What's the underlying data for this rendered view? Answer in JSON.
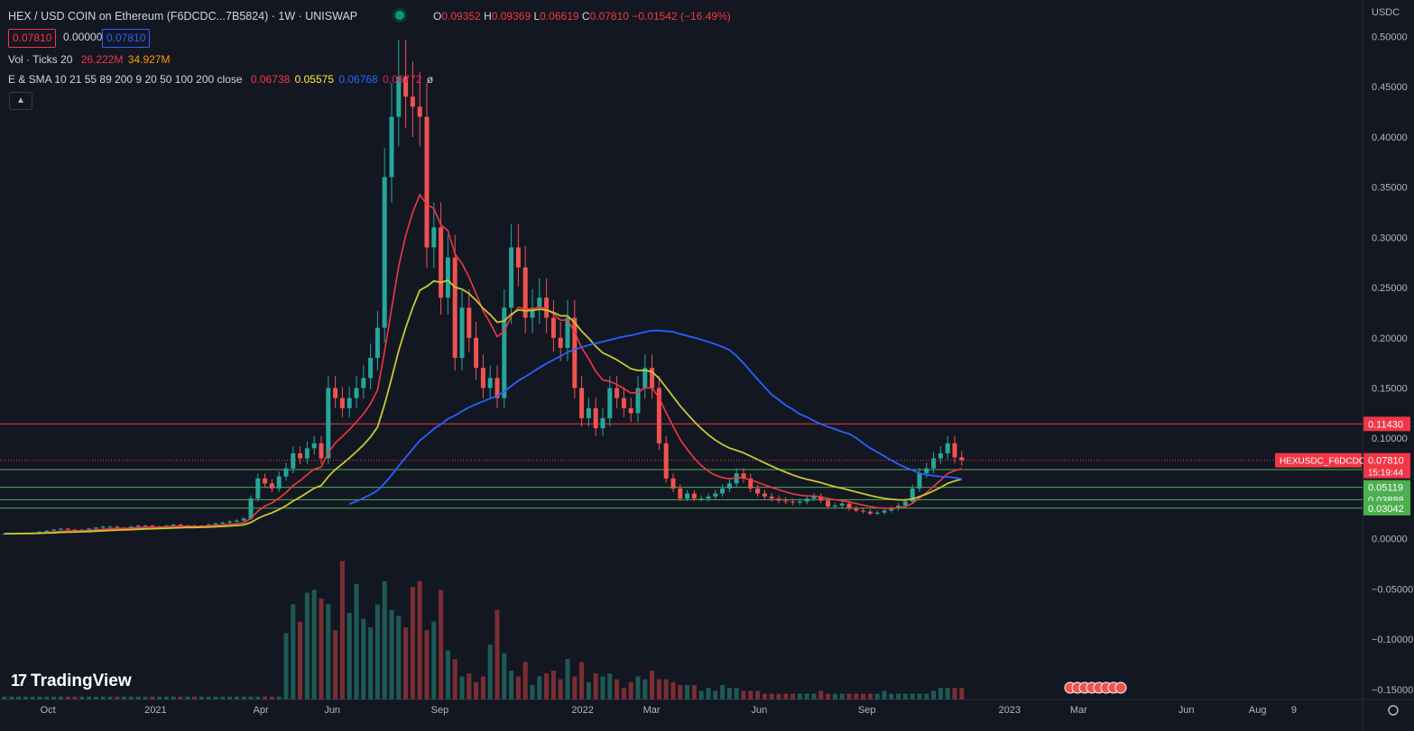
{
  "header": {
    "title": "HEX / USD COIN on Ethereum (F6DCDC...7B5824) · 1W · UNISWAP",
    "ohlc": [
      {
        "k": "O",
        "v": "0.09352"
      },
      {
        "k": "H",
        "v": "0.09369"
      },
      {
        "k": "L",
        "v": "0.06619"
      },
      {
        "k": "C",
        "v": "0.07810"
      }
    ],
    "change": "−0.01542 (−16.49%)",
    "bid": "0.07810",
    "spread": "0.00000",
    "ask": "0.07810"
  },
  "indicators": {
    "vol_label": "Vol · Ticks 20",
    "vol_v1": "26.222M",
    "vol_v2": "34.927M",
    "ma_label": "E & SMA 10 21 55 89 200 9 20 50 100 200 close",
    "ma_v1": "0.06738",
    "ma_v2": "0.05575",
    "ma_v3": "0.06768",
    "ma_v4": "0.06772",
    "ma_v5": "ø"
  },
  "collapse_icon": "chevron-up-icon",
  "branding": {
    "name": "TradingView",
    "logo_text": "17"
  },
  "currency": "USDC",
  "colors": {
    "up": "#26a69a",
    "down": "#ef5350",
    "ema10": "#f23645",
    "ema21": "#c8c832",
    "sma50": "#2962ff",
    "sma200": "#7b3a5a",
    "line_red": "#f23645",
    "line_green": "#4caf50"
  },
  "chart_data": {
    "type": "candlestick",
    "title": "HEX / USD COIN on Ethereum (F6DCDC...7B5824) · 1W · UNISWAP",
    "interval": "1W",
    "ylim": [
      -0.16,
      0.53
    ],
    "y_ticks": [
      0.5,
      0.45,
      0.4,
      0.35,
      0.3,
      0.25,
      0.2,
      0.15,
      0.1,
      0.05,
      0,
      -0.05,
      -0.1,
      -0.15
    ],
    "x_ticks": [
      {
        "label": "Oct",
        "date": "2020-10-01"
      },
      {
        "label": "2021",
        "date": "2021-01-01"
      },
      {
        "label": "Apr",
        "date": "2021-04-01"
      },
      {
        "label": "Jun",
        "date": "2021-06-01"
      },
      {
        "label": "Sep",
        "date": "2021-09-01"
      },
      {
        "label": "2022",
        "date": "2022-01-01"
      },
      {
        "label": "Mar",
        "date": "2022-03-01"
      },
      {
        "label": "Jun",
        "date": "2022-06-01"
      },
      {
        "label": "Sep",
        "date": "2022-09-01"
      },
      {
        "label": "2023",
        "date": "2023-01-01"
      },
      {
        "label": "Mar",
        "date": "2023-03-01"
      },
      {
        "label": "Jun",
        "date": "2023-06-01"
      },
      {
        "label": "Aug",
        "date": "2023-08-01"
      },
      {
        "label": "9",
        "date": "2023-09-01"
      }
    ],
    "close": [
      0.005,
      0.005,
      0.006,
      0.006,
      0.006,
      0.007,
      0.008,
      0.009,
      0.01,
      0.009,
      0.008,
      0.009,
      0.01,
      0.011,
      0.012,
      0.012,
      0.011,
      0.011,
      0.012,
      0.013,
      0.013,
      0.012,
      0.012,
      0.013,
      0.014,
      0.013,
      0.013,
      0.012,
      0.013,
      0.014,
      0.015,
      0.016,
      0.017,
      0.018,
      0.02,
      0.04,
      0.06,
      0.055,
      0.05,
      0.062,
      0.07,
      0.085,
      0.08,
      0.09,
      0.095,
      0.08,
      0.15,
      0.14,
      0.13,
      0.14,
      0.15,
      0.16,
      0.18,
      0.21,
      0.36,
      0.42,
      0.46,
      0.44,
      0.43,
      0.42,
      0.29,
      0.31,
      0.24,
      0.28,
      0.18,
      0.23,
      0.2,
      0.17,
      0.15,
      0.16,
      0.14,
      0.23,
      0.29,
      0.27,
      0.22,
      0.23,
      0.24,
      0.22,
      0.2,
      0.19,
      0.22,
      0.15,
      0.12,
      0.13,
      0.11,
      0.12,
      0.15,
      0.14,
      0.13,
      0.125,
      0.15,
      0.17,
      0.15,
      0.095,
      0.06,
      0.05,
      0.04,
      0.045,
      0.04,
      0.04,
      0.042,
      0.045,
      0.05,
      0.055,
      0.065,
      0.06,
      0.05,
      0.045,
      0.042,
      0.04,
      0.038,
      0.037,
      0.036,
      0.037,
      0.04,
      0.042,
      0.038,
      0.032,
      0.033,
      0.035,
      0.03,
      0.028,
      0.027,
      0.025,
      0.026,
      0.028,
      0.03,
      0.033,
      0.037,
      0.05,
      0.065,
      0.07,
      0.08,
      0.085,
      0.095,
      0.081,
      0.0781
    ],
    "volume": [
      0.1,
      0.1,
      0.1,
      0.1,
      0.1,
      0.1,
      0.1,
      0.1,
      0.1,
      0.1,
      0.1,
      0.1,
      0.1,
      0.1,
      0.1,
      0.1,
      0.1,
      0.1,
      0.1,
      0.1,
      0.1,
      0.1,
      0.1,
      0.1,
      0.1,
      0.1,
      0.1,
      0.1,
      0.1,
      0.1,
      0.1,
      0.1,
      0.1,
      0.1,
      0.1,
      0.1,
      0.1,
      0.1,
      0.1,
      0.1,
      2.3,
      3.3,
      2.7,
      3.7,
      3.8,
      3.5,
      3.3,
      2.4,
      4.8,
      3.0,
      4.0,
      2.8,
      2.5,
      3.3,
      4.1,
      3.1,
      2.9,
      2.5,
      3.9,
      4.1,
      2.4,
      2.7,
      3.8,
      1.7,
      1.4,
      0.8,
      0.9,
      0.6,
      0.8,
      1.9,
      3.1,
      1.6,
      1.0,
      0.8,
      1.3,
      0.5,
      0.8,
      0.9,
      1.0,
      0.7,
      1.4,
      0.8,
      1.3,
      0.6,
      0.9,
      0.8,
      0.9,
      0.7,
      0.4,
      0.6,
      0.8,
      0.7,
      1.0,
      0.7,
      0.7,
      0.6,
      0.5,
      0.5,
      0.5,
      0.3,
      0.4,
      0.3,
      0.5,
      0.4,
      0.4,
      0.3,
      0.3,
      0.3,
      0.2,
      0.2,
      0.2,
      0.2,
      0.2,
      0.2,
      0.2,
      0.2,
      0.3,
      0.2,
      0.2,
      0.2,
      0.2,
      0.2,
      0.2,
      0.2,
      0.2,
      0.3,
      0.2,
      0.2,
      0.2,
      0.2,
      0.2,
      0.2,
      0.3,
      0.4,
      0.4,
      0.4,
      0.4
    ],
    "horizontal_lines": [
      {
        "value": 0.1143,
        "color": "#f23645",
        "label": "0.11430"
      },
      {
        "value": 0.06876,
        "color": "#4caf50",
        "label": "0.06876"
      },
      {
        "value": 0.05119,
        "color": "#4caf50",
        "label": "0.05119"
      },
      {
        "value": 0.03888,
        "color": "#4caf50",
        "label": "0.03888"
      },
      {
        "value": 0.03042,
        "color": "#4caf50",
        "label": "0.03042"
      }
    ],
    "last_price": {
      "symbol": "HEXUSDC_F6DCDC",
      "price": "0.07810",
      "countdown": "15:19:44"
    }
  }
}
